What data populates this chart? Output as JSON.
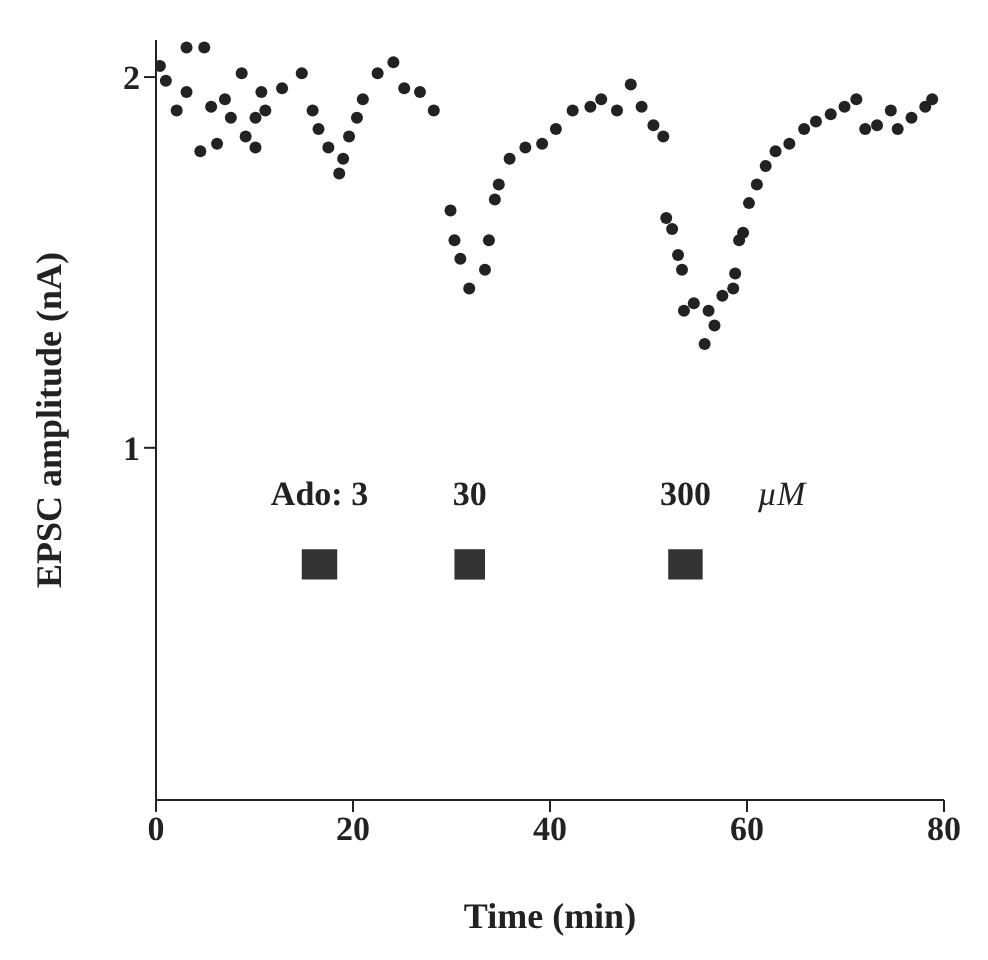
{
  "chart_data": {
    "type": "scatter",
    "xlabel": "Time (min)",
    "ylabel": "EPSC amplitude (nA)",
    "xlim": [
      0,
      80
    ],
    "xticks": [
      0,
      20,
      40,
      60,
      80
    ],
    "ylim": [
      0.05,
      2.1
    ],
    "yticks": [
      1,
      2
    ],
    "grid": false,
    "legend": false,
    "marker": "circle",
    "bands": [
      {
        "axis": "x",
        "from": 14.8,
        "to": 18.4,
        "label": "Ado: 3",
        "color": "#333333"
      },
      {
        "axis": "x",
        "from": 30.3,
        "to": 33.4,
        "label": "30",
        "color": "#333333"
      },
      {
        "axis": "x",
        "from": 52,
        "to": 55.5,
        "label": "300",
        "color": "#333333"
      }
    ],
    "annotations": [
      "µM"
    ],
    "series": [
      {
        "color": "#222222",
        "x": [
          0.4,
          1.0,
          2.1,
          3.1,
          3.1,
          4.9,
          4.5,
          6.2,
          5.6,
          7.0,
          7.6,
          8.7,
          9.1,
          10.1,
          10.1,
          11.1,
          10.7,
          12.8,
          14.8,
          15.9,
          16.5,
          17.5,
          18.6,
          19.0,
          19.6,
          20.4,
          21.0,
          22.5,
          24.1,
          25.2,
          26.8,
          28.2,
          29.9,
          30.3,
          30.9,
          31.8,
          33.4,
          33.8,
          34.4,
          34.8,
          35.9,
          37.5,
          39.2,
          40.6,
          42.3,
          44.1,
          45.2,
          46.8,
          48.2,
          49.3,
          50.5,
          51.5,
          51.8,
          52.4,
          53.0,
          53.4,
          53.6,
          54.6,
          55.7,
          56.7,
          56.1,
          57.5,
          58.6,
          58.8,
          59.2,
          59.6,
          60.2,
          61.0,
          61.9,
          62.9,
          64.3,
          65.8,
          67.0,
          68.5,
          69.9,
          71.1,
          72.0,
          73.2,
          74.6,
          75.3,
          76.7,
          78.1,
          78.8
        ],
        "values": [
          2.03,
          1.99,
          1.91,
          1.96,
          2.08,
          2.08,
          1.8,
          1.82,
          1.92,
          1.94,
          1.89,
          2.01,
          1.84,
          1.81,
          1.89,
          1.91,
          1.96,
          1.97,
          2.01,
          1.91,
          1.86,
          1.81,
          1.74,
          1.78,
          1.84,
          1.89,
          1.94,
          2.01,
          2.04,
          1.97,
          1.96,
          1.91,
          1.64,
          1.56,
          1.51,
          1.43,
          1.48,
          1.56,
          1.67,
          1.71,
          1.78,
          1.81,
          1.82,
          1.86,
          1.91,
          1.92,
          1.94,
          1.91,
          1.98,
          1.92,
          1.87,
          1.84,
          1.62,
          1.59,
          1.52,
          1.48,
          1.37,
          1.39,
          1.28,
          1.33,
          1.37,
          1.41,
          1.43,
          1.47,
          1.56,
          1.58,
          1.66,
          1.71,
          1.76,
          1.8,
          1.82,
          1.86,
          1.88,
          1.9,
          1.92,
          1.94,
          1.86,
          1.87,
          1.91,
          1.86,
          1.89,
          1.92,
          1.94
        ]
      }
    ]
  }
}
